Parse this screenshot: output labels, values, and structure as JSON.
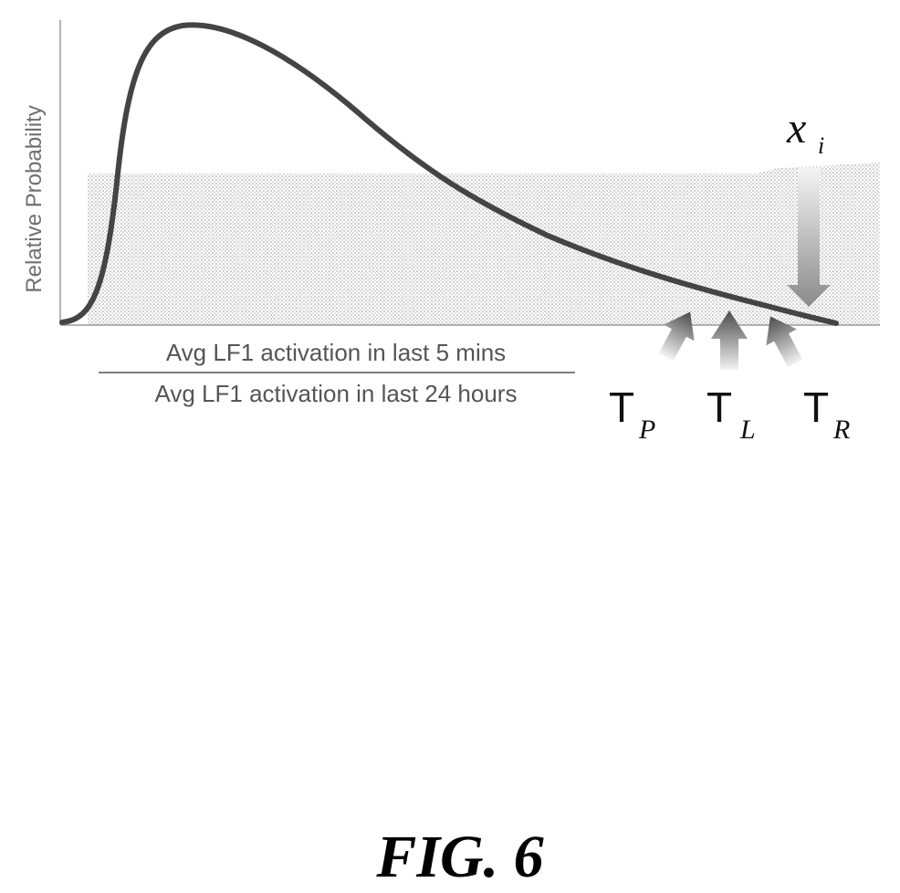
{
  "figure": {
    "caption": "FIG. 6",
    "y_axis_label": "Relative Probability",
    "x_axis_label": {
      "numerator": "Avg LF1 activation in last 5 mins",
      "denominator": "Avg LF1 activation in last 24 hours"
    },
    "thresholds": [
      {
        "letter": "T",
        "subscript": "P"
      },
      {
        "letter": "T",
        "subscript": "L"
      },
      {
        "letter": "T",
        "subscript": "R"
      }
    ],
    "sample_marker": {
      "symbol": "x",
      "subscript": "i"
    }
  },
  "colors": {
    "curve": "#444444",
    "shade": "#b0b0b0",
    "arrow": "#7a7a7a",
    "axis": "#9a9a9a",
    "text": "#111111"
  }
}
